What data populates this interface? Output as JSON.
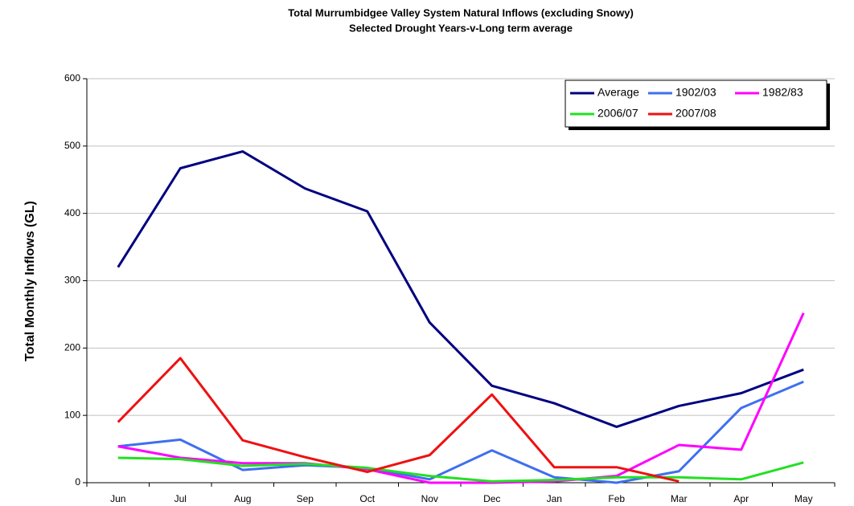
{
  "chart_data": {
    "type": "line",
    "title": "Total Murrumbidgee Valley System Natural Inflows (excluding Snowy)",
    "subtitle": "Selected Drought Years-v-Long term average",
    "y_label": "Total Monthly Inflows (GL)",
    "categories": [
      "Jun",
      "Jul",
      "Aug",
      "Sep",
      "Oct",
      "Nov",
      "Dec",
      "Jan",
      "Feb",
      "Mar",
      "Apr",
      "May"
    ],
    "series": [
      {
        "name": "Average",
        "color": "#000080",
        "values": [
          320,
          467,
          492,
          437,
          403,
          238,
          144,
          118,
          83,
          114,
          133,
          168
        ]
      },
      {
        "name": "1902/03",
        "color": "#3f6fef",
        "values": [
          54,
          64,
          19,
          26,
          22,
          5,
          48,
          8,
          0,
          17,
          111,
          150
        ]
      },
      {
        "name": "1982/83",
        "color": "#ff00ff",
        "values": [
          54,
          37,
          29,
          29,
          20,
          0,
          0,
          2,
          10,
          56,
          49,
          252
        ]
      },
      {
        "name": "2006/07",
        "color": "#22e022",
        "values": [
          37,
          35,
          25,
          28,
          22,
          10,
          2,
          4,
          8,
          8,
          5,
          30
        ]
      },
      {
        "name": "2007/08",
        "color": "#ee1111",
        "values": [
          90,
          185,
          63,
          38,
          16,
          41,
          131,
          23,
          23,
          2,
          null,
          null
        ]
      }
    ],
    "ylim": [
      0,
      600
    ],
    "yticks": [
      0,
      100,
      200,
      300,
      400,
      500,
      600
    ],
    "grid": true,
    "legend": "top-right"
  }
}
